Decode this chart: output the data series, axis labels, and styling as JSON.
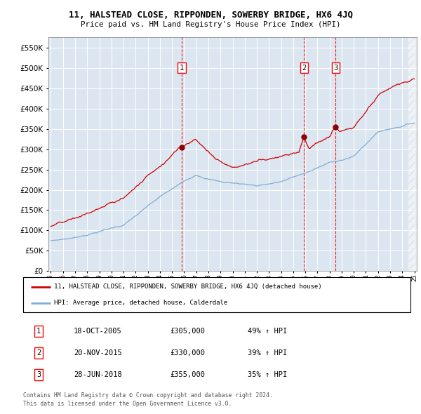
{
  "title": "11, HALSTEAD CLOSE, RIPPONDEN, SOWERBY BRIDGE, HX6 4JQ",
  "subtitle": "Price paid vs. HM Land Registry's House Price Index (HPI)",
  "red_label": "11, HALSTEAD CLOSE, RIPPONDEN, SOWERBY BRIDGE, HX6 4JQ (detached house)",
  "blue_label": "HPI: Average price, detached house, Calderdale",
  "transactions": [
    {
      "num": 1,
      "date": "18-OCT-2005",
      "price": "£305,000",
      "change": "49% ↑ HPI",
      "year": 2005.8,
      "val": 305000
    },
    {
      "num": 2,
      "date": "20-NOV-2015",
      "price": "£330,000",
      "change": "39% ↑ HPI",
      "year": 2015.9,
      "val": 330000
    },
    {
      "num": 3,
      "date": "28-JUN-2018",
      "price": "£355,000",
      "change": "35% ↑ HPI",
      "year": 2018.5,
      "val": 355000
    }
  ],
  "footer1": "Contains HM Land Registry data © Crown copyright and database right 2024.",
  "footer2": "This data is licensed under the Open Government Licence v3.0.",
  "ylim": [
    0,
    575000
  ],
  "yticks": [
    0,
    50000,
    100000,
    150000,
    200000,
    250000,
    300000,
    350000,
    400000,
    450000,
    500000,
    550000
  ],
  "plot_bg": "#dce6f1",
  "red_color": "#cc0000",
  "blue_color": "#7eadd4",
  "marker_color": "#8b0000"
}
